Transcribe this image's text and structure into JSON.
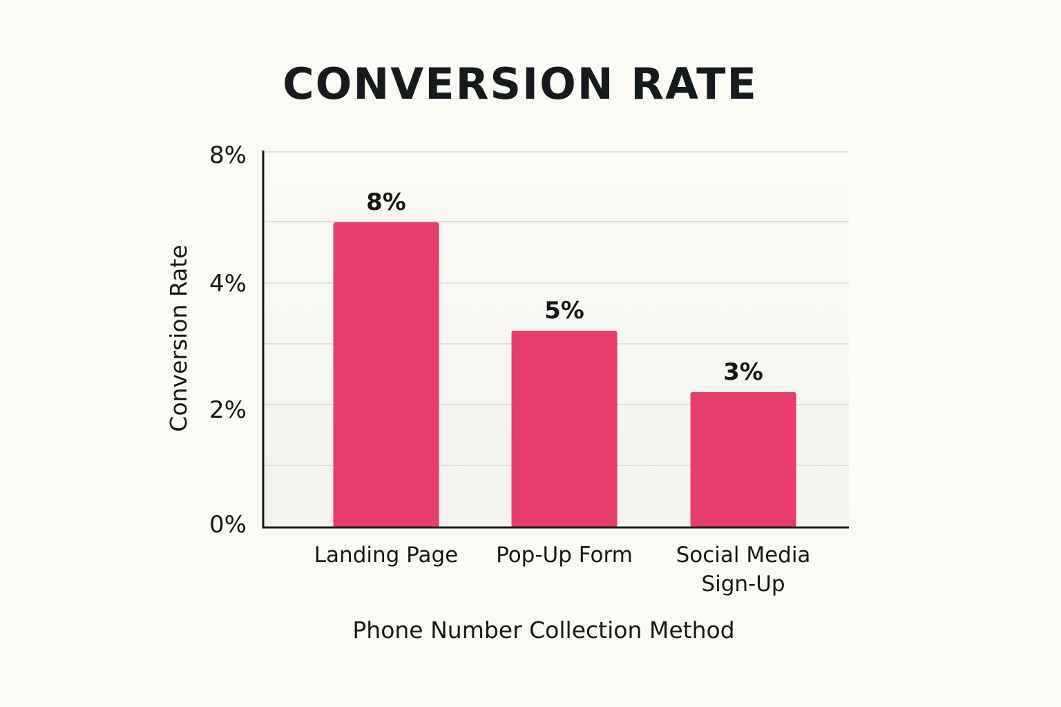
{
  "chart_data": {
    "type": "bar",
    "title": "CONVERSION RATE",
    "xlabel": "Phone Number Collection Method",
    "ylabel": "Conversion Rate",
    "categories": [
      [
        "Landing Page"
      ],
      [
        "Pop-Up Form"
      ],
      [
        "Social Media",
        "Sign-Up"
      ]
    ],
    "values": [
      8,
      5,
      3
    ],
    "data_labels": [
      "8%",
      "5%",
      "3%"
    ],
    "y_ticks": [
      {
        "value": 0,
        "label": "0%"
      },
      {
        "value": 2,
        "label": "2%"
      },
      {
        "value": 4,
        "label": "4%"
      },
      {
        "value": 8,
        "label": "8%"
      }
    ],
    "grid": true,
    "bar_color": "#e63d6a",
    "axis_color": "#1a1a1a",
    "grid_color": "#d6d6d6"
  }
}
